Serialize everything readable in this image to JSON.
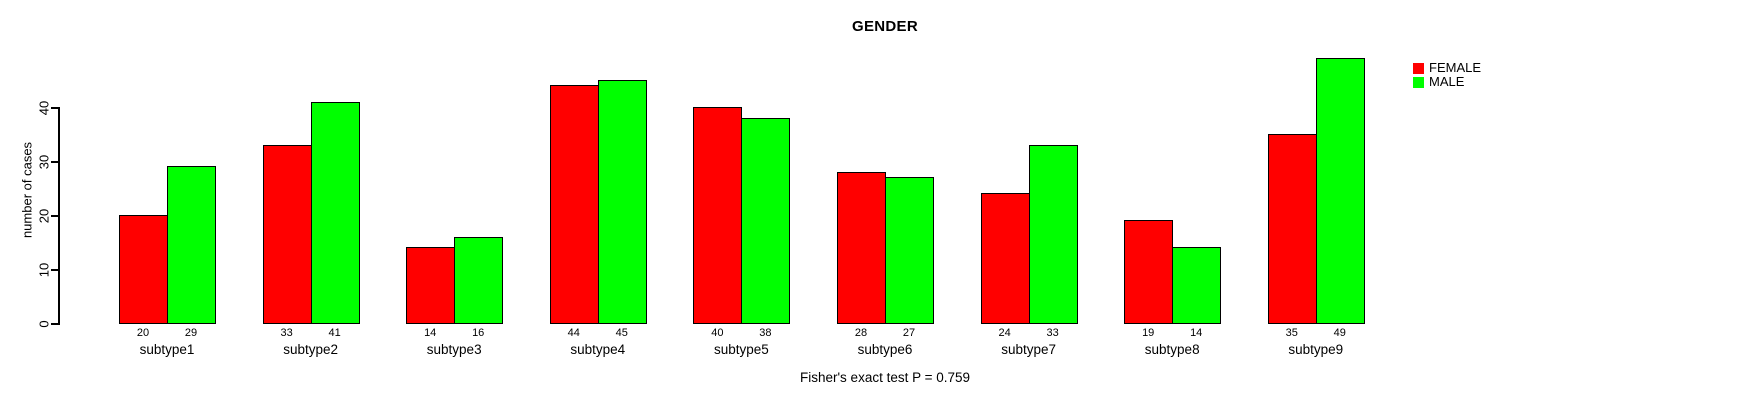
{
  "title": "GENDER",
  "annotation": "Fisher's exact test P = 0.759",
  "chart_data": {
    "type": "bar",
    "title": "GENDER",
    "categories": [
      "subtype1",
      "subtype2",
      "subtype3",
      "subtype4",
      "subtype5",
      "subtype6",
      "subtype7",
      "subtype8",
      "subtype9"
    ],
    "series": [
      {
        "name": "FEMALE",
        "color": "#ff0000",
        "values": [
          20,
          33,
          14,
          44,
          40,
          28,
          24,
          19,
          35
        ]
      },
      {
        "name": "MALE",
        "color": "#00ff00",
        "values": [
          29,
          41,
          16,
          45,
          38,
          27,
          33,
          14,
          49
        ]
      }
    ],
    "xlabel": "",
    "ylabel": "number of cases",
    "yticks": [
      0,
      10,
      20,
      30,
      40
    ],
    "ylim": [
      0,
      49
    ],
    "bar_value_labels": true,
    "grid": false,
    "legend_position": "top-right",
    "annotation": "Fisher's exact test P = 0.759",
    "background": "#ffffff",
    "bar_border_color": "#000000"
  }
}
